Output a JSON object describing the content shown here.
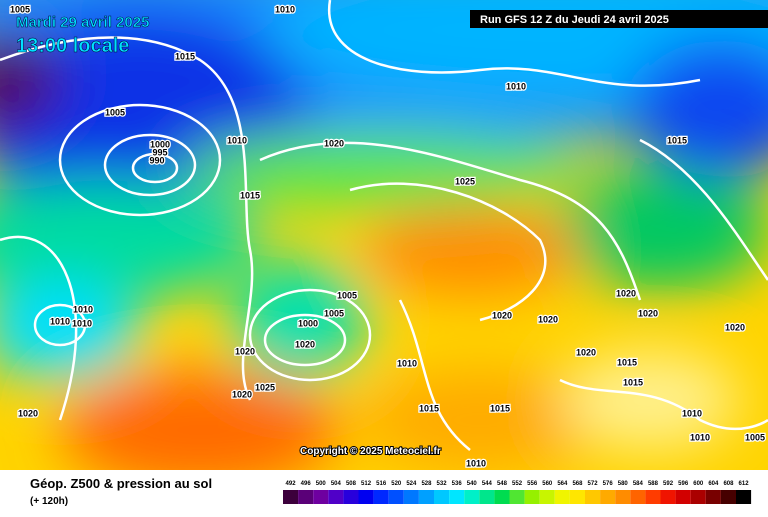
{
  "header": {
    "date": "Mardi 29 avril 2025",
    "time": "13:00 locale",
    "run": "Run GFS 12 Z du Jeudi 24 avril 2025"
  },
  "isobars": [
    1005,
    1010,
    1015,
    1005,
    1000,
    995,
    990,
    1010,
    1020,
    1015,
    1025,
    1010,
    1015,
    1010,
    1010,
    1010,
    1005,
    1005,
    1000,
    1020,
    1020,
    1025,
    1020,
    1020,
    1020,
    1020,
    1020,
    1020,
    1020,
    1010,
    1020,
    1015,
    1015,
    1015,
    1015,
    1010,
    1010,
    1010,
    1005
  ],
  "copyright": "Copyright © 2025 Meteociel.fr",
  "legend": {
    "title": "Géop. Z500 & pression au sol",
    "subtitle": "(+ 120h)",
    "scale": [
      492,
      496,
      500,
      504,
      508,
      512,
      516,
      520,
      524,
      528,
      532,
      536,
      540,
      544,
      548,
      552,
      556,
      560,
      564,
      568,
      572,
      576,
      580,
      584,
      588,
      592,
      596,
      600,
      604,
      608,
      612
    ]
  }
}
